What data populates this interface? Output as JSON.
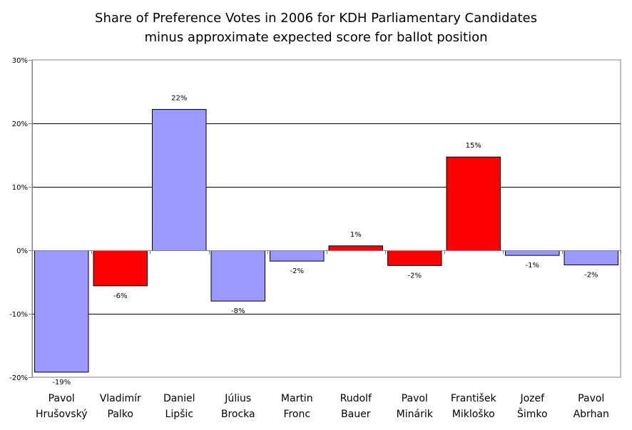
{
  "chart_data": {
    "type": "bar",
    "title": "Share of Preference Votes in 2006 for KDH Parliamentary Candidates",
    "subtitle": "minus approximate expected score for ballot position",
    "xlabel": "",
    "ylabel": "",
    "ylim": [
      -20,
      30
    ],
    "yticks": [
      30,
      20,
      10,
      0,
      -10,
      -20
    ],
    "ytick_labels": [
      "30%",
      "20%",
      "10%",
      "0%",
      "-10%",
      "-20%"
    ],
    "grid": true,
    "legend": "none",
    "categories": [
      [
        "Pavol",
        "Hrušovský"
      ],
      [
        "Vladimír",
        "Palko"
      ],
      [
        "Daniel",
        "Lipšic"
      ],
      [
        "Július",
        "Brocka"
      ],
      [
        "Martin",
        "Fronc"
      ],
      [
        "Rudolf",
        "Bauer"
      ],
      [
        "Pavol",
        "Minárik"
      ],
      [
        "František",
        "Mikloško"
      ],
      [
        "Jozef",
        "Šimko"
      ],
      [
        "Pavol",
        "Abrhan"
      ]
    ],
    "values": [
      -19.2,
      -5.6,
      22.2,
      -8.0,
      -1.7,
      0.7,
      -2.4,
      14.7,
      -0.8,
      -2.3
    ],
    "data_labels": [
      "-19%",
      "-6%",
      "22%",
      "-8%",
      "-2%",
      "1%",
      "-2%",
      "15%",
      "-1%",
      "-2%"
    ],
    "bar_colors": [
      "#9999ff",
      "#ff0000",
      "#9999ff",
      "#9999ff",
      "#9999ff",
      "#ff0000",
      "#ff0000",
      "#ff0000",
      "#9999ff",
      "#9999ff"
    ]
  }
}
